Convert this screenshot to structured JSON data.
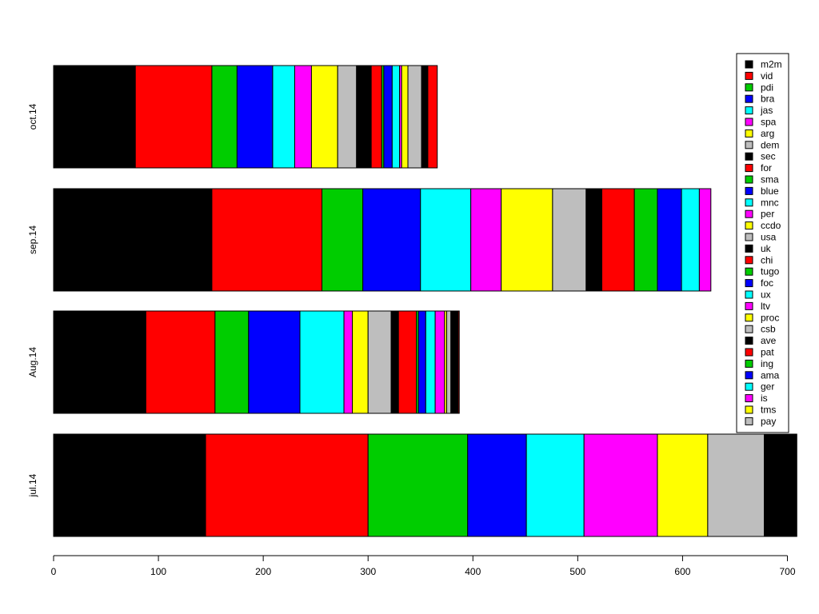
{
  "chart_data": {
    "type": "bar",
    "orientation": "horizontal",
    "stacked": true,
    "title": "",
    "xlabel": "",
    "ylabel": "",
    "xlim": [
      0,
      710
    ],
    "x_ticks": [
      0,
      100,
      200,
      300,
      400,
      500,
      600,
      700
    ],
    "categories": [
      "jul.14",
      "Aug.14",
      "sep.14",
      "oct.14"
    ],
    "legend_position": "top-right",
    "grid": false,
    "series": [
      {
        "name": "m2m",
        "color": "#000000",
        "values": [
          145,
          88,
          151,
          78
        ]
      },
      {
        "name": "vid",
        "color": "#ff0000",
        "values": [
          155,
          66,
          105,
          73
        ]
      },
      {
        "name": "pdi",
        "color": "#00cd00",
        "values": [
          95,
          32,
          39,
          24
        ]
      },
      {
        "name": "bra",
        "color": "#0000ff",
        "values": [
          56,
          49,
          55,
          34
        ]
      },
      {
        "name": "jas",
        "color": "#00ffff",
        "values": [
          55,
          42,
          48,
          21
        ]
      },
      {
        "name": "spa",
        "color": "#ff00ff",
        "values": [
          70,
          8,
          29,
          16
        ]
      },
      {
        "name": "arg",
        "color": "#ffff00",
        "values": [
          48,
          15,
          49,
          25
        ]
      },
      {
        "name": "dem",
        "color": "#bebebe",
        "values": [
          54,
          22,
          32,
          18
        ]
      },
      {
        "name": "sec",
        "color": "#000000",
        "values": [
          31,
          7,
          15,
          14
        ]
      },
      {
        "name": "for",
        "color": "#ff0000",
        "values": [
          0,
          17,
          31,
          10
        ]
      },
      {
        "name": "sma",
        "color": "#00cd00",
        "values": [
          0,
          2,
          22,
          2
        ]
      },
      {
        "name": "blue",
        "color": "#0000ff",
        "values": [
          0,
          7,
          23,
          8
        ]
      },
      {
        "name": "mnc",
        "color": "#00ffff",
        "values": [
          0,
          9,
          17,
          7
        ]
      },
      {
        "name": "per",
        "color": "#ff00ff",
        "values": [
          0,
          9,
          11,
          2
        ]
      },
      {
        "name": "ccdo",
        "color": "#ffff00",
        "values": [
          0,
          2,
          0,
          6
        ]
      },
      {
        "name": "usa",
        "color": "#bebebe",
        "values": [
          0,
          4,
          0,
          13
        ]
      },
      {
        "name": "uk",
        "color": "#000000",
        "values": [
          0,
          7,
          0,
          6
        ]
      },
      {
        "name": "chi",
        "color": "#ff0000",
        "values": [
          0,
          1,
          0,
          9
        ]
      },
      {
        "name": "tugo",
        "color": "#00cd00",
        "values": [
          0,
          0,
          0,
          0
        ]
      },
      {
        "name": "foc",
        "color": "#0000ff",
        "values": [
          0,
          0,
          0,
          0
        ]
      },
      {
        "name": "ux",
        "color": "#00ffff",
        "values": [
          0,
          0,
          0,
          0
        ]
      },
      {
        "name": "ltv",
        "color": "#ff00ff",
        "values": [
          0,
          0,
          0,
          0
        ]
      },
      {
        "name": "proc",
        "color": "#ffff00",
        "values": [
          0,
          0,
          0,
          0
        ]
      },
      {
        "name": "csb",
        "color": "#bebebe",
        "values": [
          0,
          0,
          0,
          0
        ]
      },
      {
        "name": "ave",
        "color": "#000000",
        "values": [
          0,
          0,
          0,
          0
        ]
      },
      {
        "name": "pat",
        "color": "#ff0000",
        "values": [
          0,
          0,
          0,
          0
        ]
      },
      {
        "name": "ing",
        "color": "#00cd00",
        "values": [
          0,
          0,
          0,
          0
        ]
      },
      {
        "name": "ama",
        "color": "#0000ff",
        "values": [
          0,
          0,
          0,
          0
        ]
      },
      {
        "name": "ger",
        "color": "#00ffff",
        "values": [
          0,
          0,
          0,
          0
        ]
      },
      {
        "name": "is",
        "color": "#ff00ff",
        "values": [
          0,
          0,
          0,
          0
        ]
      },
      {
        "name": "tms",
        "color": "#ffff00",
        "values": [
          0,
          0,
          0,
          0
        ]
      },
      {
        "name": "pay",
        "color": "#bebebe",
        "values": [
          0,
          0,
          0,
          0
        ]
      }
    ]
  }
}
